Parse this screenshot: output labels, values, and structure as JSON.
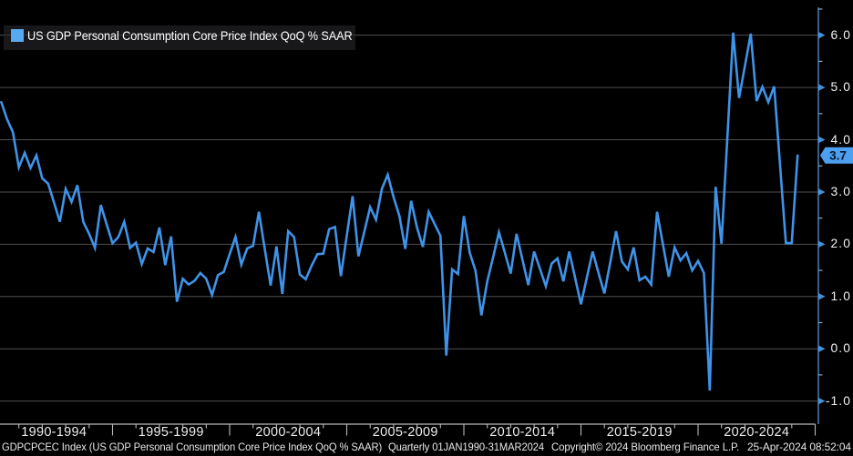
{
  "colors": {
    "background": "#000000",
    "series_line": "#3f93e8",
    "legend_marker": "#57a9f2",
    "legend_background": "#18181a",
    "badge_fill": "#4d9ff0",
    "badge_text": "#0a1828",
    "gridline": "#4e4e50",
    "y_axis_line": "#4a7fb5",
    "y_axis_arrow": "#4590d8",
    "y_axis_minor_tick": "#86a6c8",
    "x_axis_line": "#b9b9b9",
    "axis_label_text": "#f2f2f2"
  },
  "legend": {
    "label": "US GDP Personal Consumption Core Price Index QoQ % SAAR"
  },
  "y_axis": {
    "labels": [
      "6.0",
      "5.0",
      "4.0",
      "3.0",
      "2.0",
      "1.0",
      "0.0",
      "-1.0"
    ],
    "values": [
      6,
      5,
      4,
      3,
      2,
      1,
      0,
      -1
    ],
    "minor_tick_step": 0.5,
    "side": "right",
    "last_value_label": "3.7",
    "last_value": 3.7
  },
  "x_axis": {
    "labels": [
      "1990-1994",
      "1995-1999",
      "2000-2004",
      "2005-2009",
      "2010-2014",
      "2015-2019",
      "2020-2024"
    ]
  },
  "status_bar": {
    "security": "GDPCPCEC Index (US GDP Personal Consumption Core Price Index QoQ % SAAR)",
    "range": "Quarterly 01JAN1990-31MAR2024",
    "copyright": "Copyright© 2024 Bloomberg Finance L.P.",
    "timestamp": "25-Apr-2024 08:52:04"
  },
  "chart_data": {
    "type": "line",
    "title": "US GDP Personal Consumption Core Price Index QoQ % SAAR",
    "frequency": "quarterly",
    "x_start": "1990 Q1",
    "x_end": "2024 Q1",
    "xlabel": "",
    "ylabel": "QoQ % SAAR",
    "ylim": [
      -1.44,
      6.67
    ],
    "grid": "horizontal",
    "legend_position": "top-left",
    "axis_position": "right",
    "values": [
      4.72,
      4.39,
      4.14,
      3.47,
      3.75,
      3.46,
      3.7,
      3.26,
      3.16,
      2.8,
      2.43,
      3.06,
      2.81,
      3.13,
      2.43,
      2.2,
      1.93,
      2.75,
      2.38,
      2.02,
      2.14,
      2.43,
      1.93,
      2.03,
      1.62,
      1.92,
      1.85,
      2.32,
      1.6,
      2.15,
      0.9,
      1.34,
      1.23,
      1.3,
      1.45,
      1.34,
      1.03,
      1.41,
      1.47,
      1.81,
      2.14,
      1.61,
      1.92,
      1.97,
      2.62,
      1.91,
      1.21,
      1.96,
      1.05,
      2.25,
      2.14,
      1.42,
      1.33,
      1.59,
      1.81,
      1.82,
      2.29,
      2.33,
      1.39,
      2.16,
      2.92,
      1.77,
      2.24,
      2.71,
      2.47,
      3.06,
      3.33,
      2.9,
      2.54,
      1.91,
      2.83,
      2.32,
      1.95,
      2.62,
      2.39,
      2.16,
      -0.13,
      1.52,
      1.43,
      2.54,
      1.84,
      1.49,
      0.64,
      1.29,
      1.75,
      2.23,
      1.84,
      1.44,
      2.2,
      1.71,
      1.22,
      1.86,
      1.53,
      1.2,
      1.63,
      1.73,
      1.29,
      1.86,
      1.36,
      0.85,
      1.36,
      1.86,
      1.45,
      1.06,
      1.65,
      2.25,
      1.67,
      1.52,
      1.94,
      1.31,
      1.38,
      1.23,
      2.62,
      2.0,
      1.38,
      1.94,
      1.69,
      1.83,
      1.5,
      1.68,
      1.45,
      -0.8,
      3.1,
      2.01,
      4.03,
      6.05,
      4.8,
      5.41,
      6.03,
      4.74,
      5.01,
      4.72,
      5.02,
      3.52,
      2.02,
      2.02,
      3.7
    ]
  }
}
